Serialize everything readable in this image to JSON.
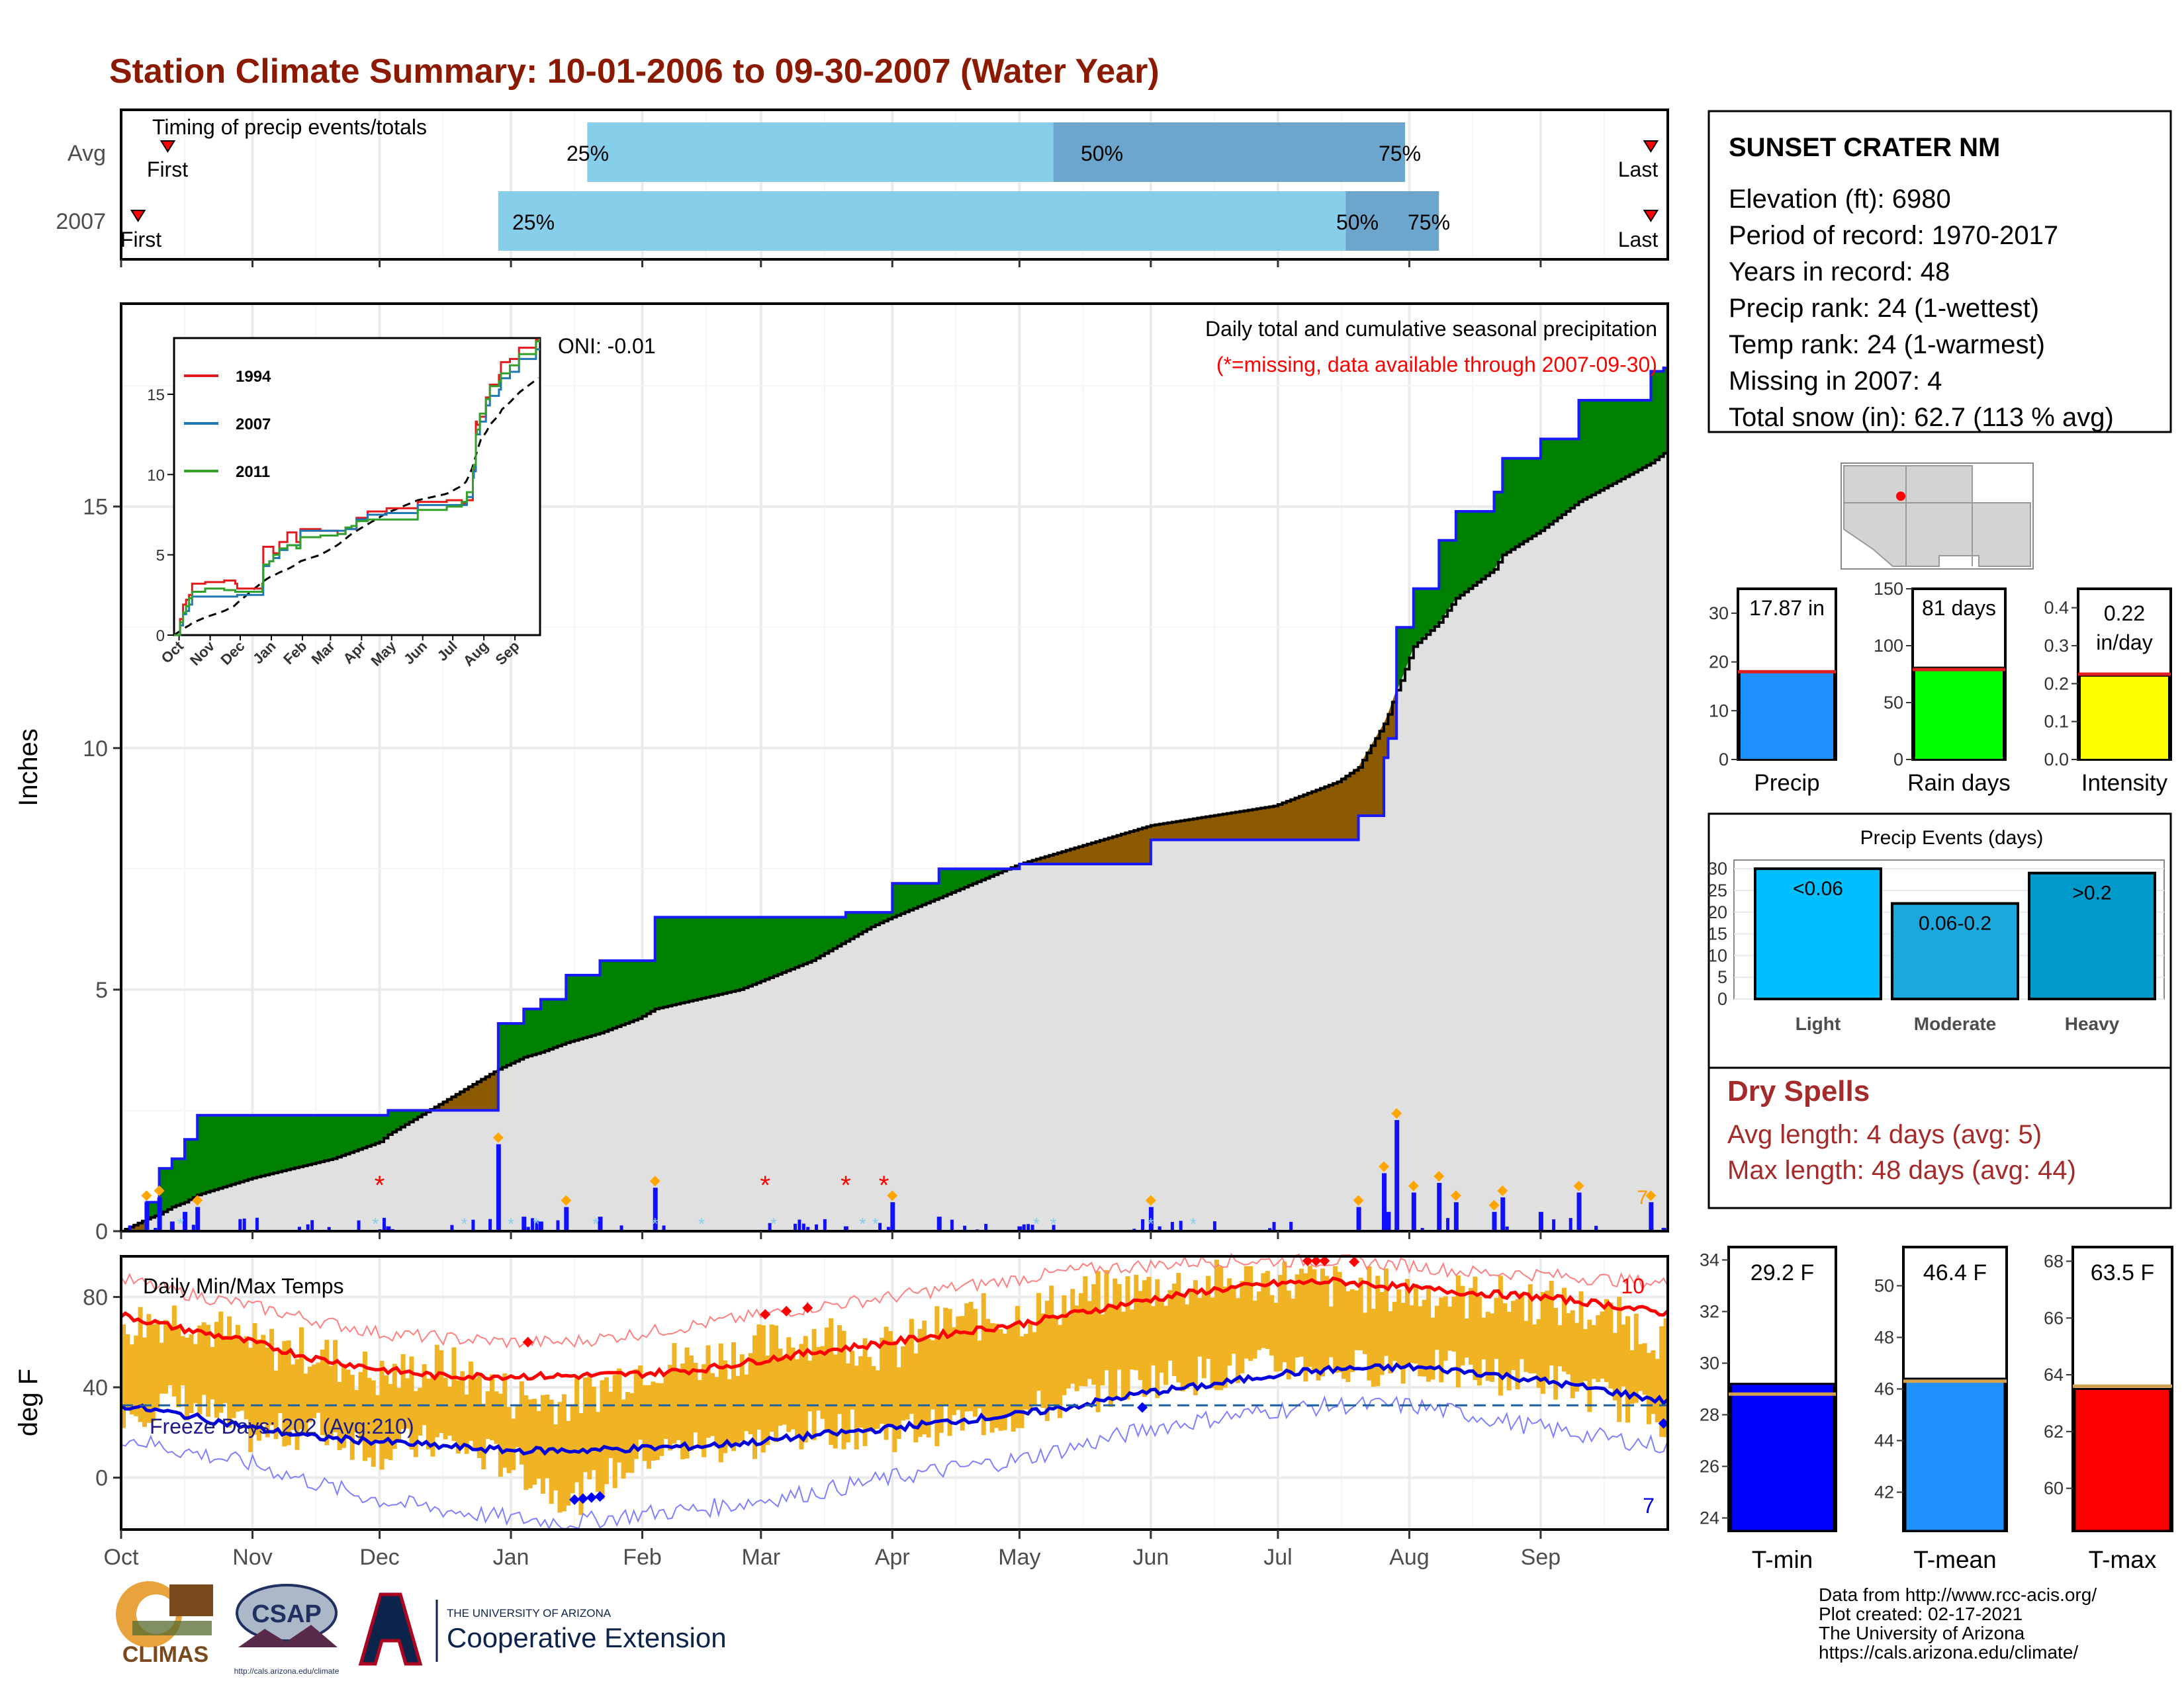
{
  "title": "Station Climate Summary: 10-01-2006 to 09-30-2007 (Water Year)",
  "colors": {
    "title": "#8b1a00",
    "wet": "#008000",
    "dry": "#8b5a00",
    "cum_line": "#1a1aff",
    "avg_gray": "#e0e0e0",
    "bar_light": "#87ceeb",
    "bar_dark": "#6ca6cd",
    "temp_bar": "#f0b323",
    "tmax": "#ff0000",
    "tmin": "#0000dd",
    "dry_spells": "#a52a2a"
  },
  "timing_panel": {
    "label": "Timing of precip events/totals",
    "rows": [
      {
        "label": "Avg",
        "first": "First",
        "last": "Last",
        "p25": "25%",
        "p50": "50%",
        "p75": "75%"
      },
      {
        "label": "2007",
        "first": "First",
        "last": "Last",
        "p25": "25%",
        "p50": "50%",
        "p75": "75%"
      }
    ]
  },
  "precip_panel": {
    "ylabel": "Inches",
    "note1": "Daily total and cumulative seasonal precipitation",
    "note2": "(*=missing, data available through 2007-09-30)",
    "oni": "ONI: -0.01",
    "yticks": [
      "0",
      "5",
      "10",
      "15"
    ],
    "max_day_count": "7"
  },
  "inset": {
    "legend": [
      "1994",
      "2007",
      "2011"
    ],
    "yticks": [
      "0",
      "5",
      "10",
      "15"
    ],
    "months": [
      "Oct",
      "Nov",
      "Dec",
      "Jan",
      "Feb",
      "Mar",
      "Apr",
      "May",
      "Jun",
      "Jul",
      "Aug",
      "Sep"
    ]
  },
  "temp_panel": {
    "title": "Daily Min/Max Temps",
    "ylabel": "deg F",
    "yticks": [
      "0",
      "40",
      "80"
    ],
    "freeze": "Freeze Days: 202 (Avg:210)",
    "count_high": "10",
    "count_low": "7"
  },
  "months": [
    "Oct",
    "Nov",
    "Dec",
    "Jan",
    "Feb",
    "Mar",
    "Apr",
    "May",
    "Jun",
    "Jul",
    "Aug",
    "Sep"
  ],
  "station": {
    "name": "SUNSET CRATER NM",
    "lines": [
      "Elevation (ft): 6980",
      "Period of record: 1970-2017",
      "Years in record: 48",
      "Precip rank: 24 (1-wettest)",
      "Temp rank: 24 (1-warmest)",
      "Missing in 2007: 4",
      "Total snow (in): 62.7 (113 % avg)"
    ]
  },
  "mini_bars": [
    {
      "label": "Precip",
      "value_label": "17.87 in",
      "value": 17.87,
      "avg": 18,
      "max": 35,
      "ticks": [
        "0",
        "10",
        "20",
        "30"
      ],
      "color": "#1e90ff"
    },
    {
      "label": "Rain days",
      "value_label": "81 days",
      "value": 81,
      "avg": 79,
      "max": 150,
      "ticks": [
        "0",
        "50",
        "100",
        "150"
      ],
      "color": "#00ff00"
    },
    {
      "label": "Intensity",
      "value_label": "0.22",
      "value_label2": "in/day",
      "value": 0.22,
      "avg": 0.225,
      "max": 0.45,
      "ticks": [
        "0.0",
        "0.1",
        "0.2",
        "0.3",
        "0.4"
      ],
      "color": "#ffff00"
    }
  ],
  "precip_events": {
    "title": "Precip Events (days)",
    "categories": [
      "Light",
      "Moderate",
      "Heavy"
    ],
    "bin_labels": [
      "<0.06",
      "0.06-0.2",
      ">0.2"
    ],
    "values": [
      30,
      22,
      29
    ],
    "ticks": [
      "0",
      "5",
      "10",
      "15",
      "20",
      "25",
      "30"
    ],
    "colors": [
      "#00bfff",
      "#1ca8dd",
      "#0099cc"
    ]
  },
  "dry_spells": {
    "title": "Dry Spells",
    "avg": "Avg length: 4 days (avg: 5)",
    "max": "Max length: 48 days (avg: 44)"
  },
  "temp_bars": [
    {
      "label": "T-min",
      "value_label": "29.2 F",
      "value": 29.2,
      "avg": 28.8,
      "min": 23.5,
      "max": 34.5,
      "ticks": [
        "24",
        "26",
        "28",
        "30",
        "32",
        "34"
      ],
      "color": "#0000ff"
    },
    {
      "label": "T-mean",
      "value_label": "46.4 F",
      "value": 46.4,
      "avg": 46.3,
      "min": 40.5,
      "max": 51.5,
      "ticks": [
        "42",
        "44",
        "46",
        "48",
        "50"
      ],
      "color": "#1e90ff"
    },
    {
      "label": "T-max",
      "value_label": "63.5 F",
      "value": 63.5,
      "avg": 63.6,
      "min": 58.5,
      "max": 68.5,
      "ticks": [
        "60",
        "62",
        "64",
        "66",
        "68"
      ],
      "color": "#ff0000"
    }
  ],
  "credits": [
    "Data from http://www.rcc-acis.org/",
    "Plot created: 02-17-2021",
    "The University of Arizona",
    "https://cals.arizona.edu/climate/"
  ],
  "logos": {
    "climas": "CLIMAS",
    "csap": "CSAP",
    "csap_url": "http://cals.arizona.edu/climate",
    "ua_small": "THE UNIVERSITY OF ARIZONA",
    "ua_big": "Cooperative Extension"
  },
  "chart_data": [
    {
      "type": "bar",
      "title": "Timing of precip events/totals",
      "categories": [
        "Avg",
        "2007"
      ],
      "series": [
        {
          "name": "25%",
          "values": [
            "2007-01-19",
            "2006-12-29"
          ]
        },
        {
          "name": "50%",
          "values": [
            "2007-05-09",
            "2007-07-17"
          ]
        },
        {
          "name": "75%",
          "values": [
            "2007-07-31",
            "2007-08-08"
          ]
        },
        {
          "name": "First",
          "values": [
            "2006-10-12",
            "2006-10-05"
          ]
        },
        {
          "name": "Last",
          "values": [
            "2007-09-27",
            "2007-09-27"
          ]
        }
      ]
    },
    {
      "type": "area",
      "title": "Daily total and cumulative seasonal precipitation",
      "ylabel": "Inches",
      "ylim": [
        0,
        19.2
      ],
      "x": [
        "2006-10-01",
        "2006-10-07",
        "2006-10-10",
        "2006-10-13",
        "2006-10-16",
        "2006-10-19",
        "2006-11-01",
        "2006-11-20",
        "2006-12-01",
        "2006-12-03",
        "2006-12-28",
        "2006-12-29",
        "2007-01-04",
        "2007-01-08",
        "2007-01-14",
        "2007-01-22",
        "2007-01-31",
        "2007-02-04",
        "2007-02-24",
        "2007-03-13",
        "2007-03-21",
        "2007-03-27",
        "2007-04-01",
        "2007-04-12",
        "2007-05-01",
        "2007-06-01",
        "2007-06-30",
        "2007-07-15",
        "2007-07-20",
        "2007-07-26",
        "2007-07-27",
        "2007-07-29",
        "2007-07-30",
        "2007-08-02",
        "2007-08-08",
        "2007-08-12",
        "2007-08-21",
        "2007-08-23",
        "2007-09-01",
        "2007-09-10",
        "2007-09-27",
        "2007-09-30"
      ],
      "series": [
        {
          "name": "2007",
          "values": [
            0,
            0.6,
            1.3,
            1.5,
            1.9,
            2.4,
            2.4,
            2.4,
            2.4,
            2.5,
            2.5,
            4.3,
            4.6,
            4.8,
            5.3,
            5.6,
            5.6,
            6.5,
            6.5,
            6.5,
            6.6,
            6.6,
            7.2,
            7.5,
            7.6,
            8.1,
            8.1,
            8.1,
            8.6,
            9.8,
            10.2,
            12.5,
            12.5,
            13.3,
            14.3,
            14.9,
            15.3,
            16.0,
            16.4,
            17.2,
            17.8,
            17.87
          ]
        },
        {
          "name": "Average",
          "values": [
            0,
            0.25,
            0.35,
            0.5,
            0.6,
            0.75,
            1.1,
            1.5,
            1.85,
            2.0,
            3.3,
            3.35,
            3.6,
            3.7,
            3.9,
            4.1,
            4.4,
            4.6,
            5.0,
            5.6,
            6.0,
            6.3,
            6.5,
            6.9,
            7.6,
            8.4,
            8.8,
            9.3,
            9.6,
            10.5,
            10.7,
            11.2,
            11.4,
            12.1,
            12.6,
            13.1,
            13.7,
            14.0,
            14.5,
            15.1,
            15.9,
            16.1
          ]
        }
      ]
    },
    {
      "type": "line",
      "title": "Daily Min/Max Temps",
      "ylabel": "deg F",
      "ylim": [
        -23,
        98
      ],
      "x": [
        "2006-10-01",
        "2006-10-15",
        "2006-11-01",
        "2006-11-15",
        "2006-12-01",
        "2006-12-15",
        "2007-01-01",
        "2007-01-15",
        "2007-02-01",
        "2007-02-15",
        "2007-03-01",
        "2007-03-15",
        "2007-04-01",
        "2007-04-15",
        "2007-05-01",
        "2007-05-15",
        "2007-06-01",
        "2007-06-15",
        "2007-07-01",
        "2007-07-15",
        "2007-08-01",
        "2007-08-15",
        "2007-09-01",
        "2007-09-15",
        "2007-09-30"
      ],
      "series": [
        {
          "name": "Avg max",
          "values": [
            72,
            66,
            60,
            53,
            48,
            45,
            45,
            45,
            46,
            48,
            52,
            56,
            60,
            64,
            68,
            73,
            79,
            83,
            86,
            87,
            84,
            82,
            80,
            77,
            73
          ]
        },
        {
          "name": "Avg min",
          "values": [
            32,
            28,
            22,
            18,
            16,
            14,
            12,
            12,
            13,
            14,
            16,
            19,
            22,
            25,
            28,
            32,
            38,
            41,
            46,
            48,
            49,
            47,
            43,
            39,
            34
          ]
        },
        {
          "name": "Record max",
          "values": [
            88,
            82,
            76,
            70,
            64,
            62,
            60,
            60,
            64,
            68,
            72,
            76,
            80,
            84,
            88,
            92,
            94,
            96,
            96,
            96,
            94,
            91,
            90,
            88,
            86
          ]
        },
        {
          "name": "Record min",
          "values": [
            18,
            12,
            6,
            -2,
            -10,
            -14,
            -18,
            -20,
            -16,
            -14,
            -10,
            -6,
            0,
            4,
            8,
            14,
            22,
            26,
            30,
            32,
            32,
            28,
            22,
            18,
            14
          ]
        },
        {
          "name": "Daily max",
          "values": [
            68,
            72,
            58,
            56,
            44,
            50,
            36,
            34,
            50,
            52,
            58,
            64,
            56,
            70,
            72,
            80,
            84,
            86,
            88,
            84,
            82,
            80,
            78,
            72,
            62
          ]
        },
        {
          "name": "Daily min",
          "values": [
            30,
            34,
            18,
            22,
            12,
            16,
            6,
            -10,
            10,
            14,
            16,
            22,
            20,
            24,
            28,
            36,
            44,
            46,
            50,
            48,
            50,
            46,
            44,
            36,
            26
          ]
        }
      ],
      "freeze_threshold": 32
    },
    {
      "type": "bar",
      "title": "Precip Events (days)",
      "categories": [
        "Light",
        "Moderate",
        "Heavy"
      ],
      "values": [
        30,
        22,
        29
      ]
    },
    {
      "type": "bar",
      "categories": [
        "Precip",
        "Rain days",
        "Intensity"
      ],
      "series": [
        {
          "name": "2007",
          "values": [
            17.87,
            81,
            0.22
          ]
        },
        {
          "name": "Average",
          "values": [
            18,
            79,
            0.225
          ]
        }
      ]
    },
    {
      "type": "bar",
      "categories": [
        "T-min",
        "T-mean",
        "T-max"
      ],
      "series": [
        {
          "name": "2007",
          "values": [
            29.2,
            46.4,
            63.5
          ]
        },
        {
          "name": "Average",
          "values": [
            28.8,
            46.3,
            63.6
          ]
        }
      ]
    }
  ]
}
